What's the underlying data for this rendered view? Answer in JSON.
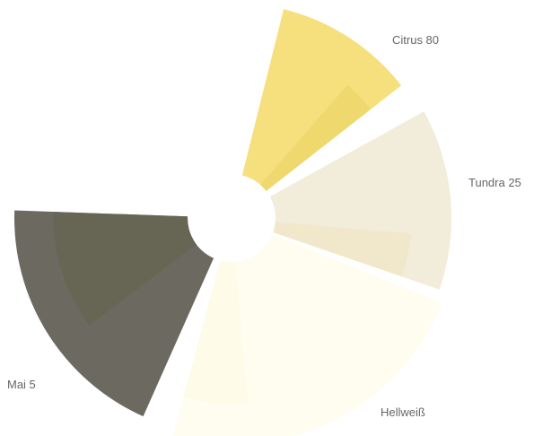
{
  "chart_data": {
    "type": "pie",
    "variant": "rose",
    "title": "",
    "legend": "none",
    "slices": [
      {
        "label": "Citrus 80",
        "color": "#f6e07e",
        "inner_color": "#eed76b"
      },
      {
        "label": "Tundra 25",
        "color": "#f2ecda",
        "inner_color": "#f1e8c9"
      },
      {
        "label": "Hellweiß",
        "color": "#fefdf0",
        "inner_color": "#fefbe8"
      },
      {
        "label": "Mai 5",
        "color": "#6c6a60",
        "inner_color": "#676552"
      }
    ]
  }
}
